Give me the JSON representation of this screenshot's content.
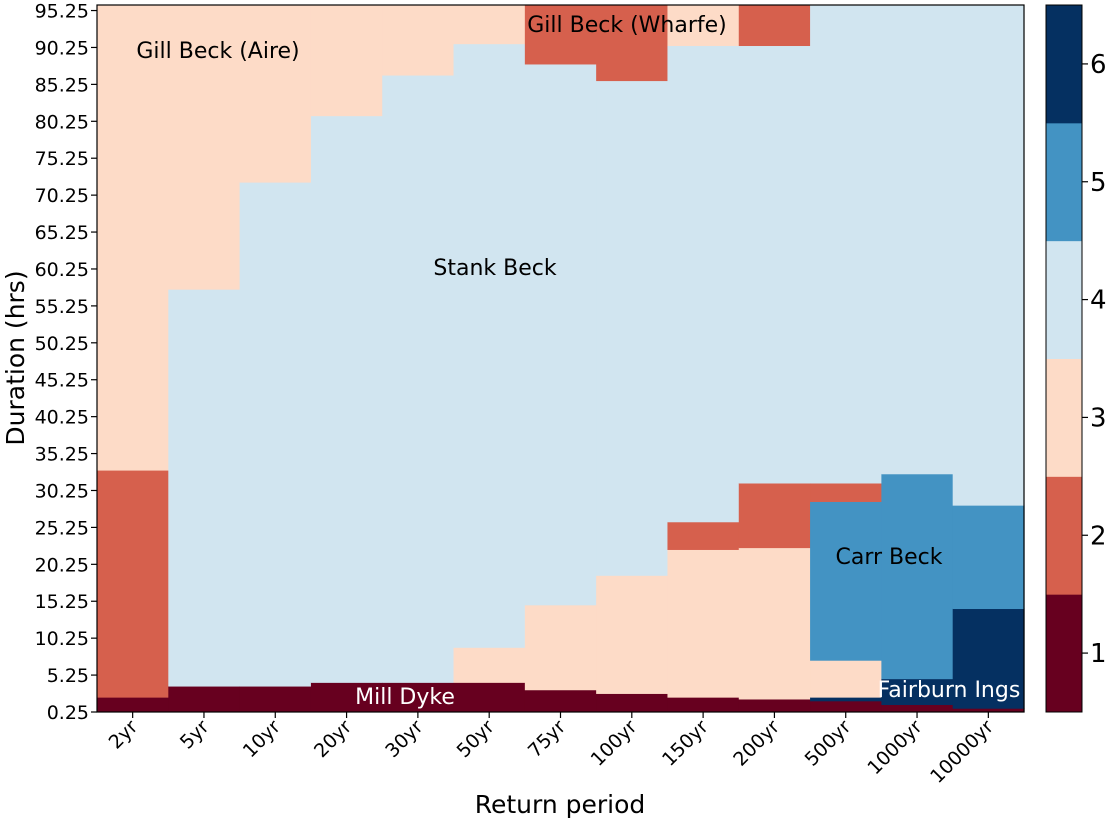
{
  "chart_data": {
    "type": "heatmap",
    "title": "",
    "xlabel": "Return period",
    "ylabel": "Duration (hrs)",
    "x_categories": [
      "2yr",
      "5yr",
      "10yr",
      "20yr",
      "30yr",
      "50yr",
      "75yr",
      "100yr",
      "150yr",
      "200yr",
      "500yr",
      "1000yr",
      "10000yr"
    ],
    "y_ticks": [
      "0.25",
      "5.25",
      "10.25",
      "15.25",
      "20.25",
      "25.25",
      "30.25",
      "35.25",
      "40.25",
      "45.25",
      "50.25",
      "55.25",
      "60.25",
      "65.25",
      "70.25",
      "75.25",
      "80.25",
      "85.25",
      "90.25",
      "95.25"
    ],
    "y_range": [
      0.25,
      96.0
    ],
    "colorbar": {
      "ticks": [
        "1",
        "2",
        "3",
        "4",
        "5",
        "6"
      ],
      "range": [
        0.5,
        6.5
      ],
      "colors": [
        "#67001f",
        "#d6604d",
        "#fddbc7",
        "#d1e5f0",
        "#4393c3",
        "#053061"
      ]
    },
    "region_labels": [
      {
        "text": "Gill Beck (Aire)",
        "value": 3
      },
      {
        "text": "Gill Beck (Wharfe)",
        "value": 2
      },
      {
        "text": "Stank Beck",
        "value": 4
      },
      {
        "text": "Carr Beck",
        "value": 5
      },
      {
        "text": "Mill Dyke",
        "value": 1
      },
      {
        "text": "Fairburn Ings",
        "value": 6
      }
    ],
    "columns": [
      {
        "x": "2yr",
        "segments": [
          {
            "from": 0.25,
            "to": 2.25,
            "value": 1
          },
          {
            "from": 2.25,
            "to": 33.0,
            "value": 2
          },
          {
            "from": 33.0,
            "to": 96.0,
            "value": 3
          }
        ]
      },
      {
        "x": "5yr",
        "segments": [
          {
            "from": 0.25,
            "to": 3.75,
            "value": 1
          },
          {
            "from": 3.75,
            "to": 57.5,
            "value": 4
          },
          {
            "from": 57.5,
            "to": 96.0,
            "value": 3
          }
        ]
      },
      {
        "x": "10yr",
        "segments": [
          {
            "from": 0.25,
            "to": 3.75,
            "value": 1
          },
          {
            "from": 3.75,
            "to": 72.0,
            "value": 4
          },
          {
            "from": 72.0,
            "to": 96.0,
            "value": 3
          }
        ]
      },
      {
        "x": "20yr",
        "segments": [
          {
            "from": 0.25,
            "to": 4.25,
            "value": 1
          },
          {
            "from": 4.25,
            "to": 81.0,
            "value": 4
          },
          {
            "from": 81.0,
            "to": 96.0,
            "value": 3
          }
        ]
      },
      {
        "x": "30yr",
        "segments": [
          {
            "from": 0.25,
            "to": 4.25,
            "value": 1
          },
          {
            "from": 4.25,
            "to": 86.5,
            "value": 4
          },
          {
            "from": 86.5,
            "to": 96.0,
            "value": 3
          }
        ]
      },
      {
        "x": "50yr",
        "segments": [
          {
            "from": 0.25,
            "to": 4.25,
            "value": 1
          },
          {
            "from": 4.25,
            "to": 9.0,
            "value": 3
          },
          {
            "from": 9.0,
            "to": 90.75,
            "value": 4
          },
          {
            "from": 90.75,
            "to": 96.0,
            "value": 3
          }
        ]
      },
      {
        "x": "75yr",
        "segments": [
          {
            "from": 0.25,
            "to": 3.25,
            "value": 1
          },
          {
            "from": 3.25,
            "to": 14.75,
            "value": 3
          },
          {
            "from": 14.75,
            "to": 88.0,
            "value": 4
          },
          {
            "from": 88.0,
            "to": 96.0,
            "value": 2
          }
        ]
      },
      {
        "x": "100yr",
        "segments": [
          {
            "from": 0.25,
            "to": 2.75,
            "value": 1
          },
          {
            "from": 2.75,
            "to": 18.75,
            "value": 3
          },
          {
            "from": 18.75,
            "to": 85.75,
            "value": 4
          },
          {
            "from": 85.75,
            "to": 96.0,
            "value": 2
          }
        ]
      },
      {
        "x": "150yr",
        "segments": [
          {
            "from": 0.25,
            "to": 2.25,
            "value": 1
          },
          {
            "from": 2.25,
            "to": 22.25,
            "value": 3
          },
          {
            "from": 22.25,
            "to": 26.0,
            "value": 2
          },
          {
            "from": 26.0,
            "to": 90.5,
            "value": 4
          },
          {
            "from": 90.5,
            "to": 96.0,
            "value": 3
          }
        ]
      },
      {
        "x": "200yr",
        "segments": [
          {
            "from": 0.25,
            "to": 2.0,
            "value": 1
          },
          {
            "from": 2.0,
            "to": 22.5,
            "value": 3
          },
          {
            "from": 22.5,
            "to": 31.25,
            "value": 2
          },
          {
            "from": 31.25,
            "to": 90.5,
            "value": 4
          },
          {
            "from": 90.5,
            "to": 96.0,
            "value": 2
          }
        ]
      },
      {
        "x": "500yr",
        "segments": [
          {
            "from": 0.25,
            "to": 1.75,
            "value": 1
          },
          {
            "from": 1.75,
            "to": 2.25,
            "value": 6
          },
          {
            "from": 2.25,
            "to": 7.25,
            "value": 3
          },
          {
            "from": 7.25,
            "to": 28.75,
            "value": 5
          },
          {
            "from": 28.75,
            "to": 31.25,
            "value": 2
          },
          {
            "from": 31.25,
            "to": 96.0,
            "value": 4
          }
        ]
      },
      {
        "x": "1000yr",
        "segments": [
          {
            "from": 0.25,
            "to": 1.25,
            "value": 1
          },
          {
            "from": 1.25,
            "to": 4.75,
            "value": 6
          },
          {
            "from": 4.75,
            "to": 32.5,
            "value": 5
          },
          {
            "from": 32.5,
            "to": 96.0,
            "value": 4
          }
        ]
      },
      {
        "x": "10000yr",
        "segments": [
          {
            "from": 0.25,
            "to": 0.75,
            "value": 1
          },
          {
            "from": 0.75,
            "to": 14.25,
            "value": 6
          },
          {
            "from": 14.25,
            "to": 28.25,
            "value": 5
          },
          {
            "from": 28.25,
            "to": 96.0,
            "value": 4
          }
        ]
      }
    ]
  }
}
